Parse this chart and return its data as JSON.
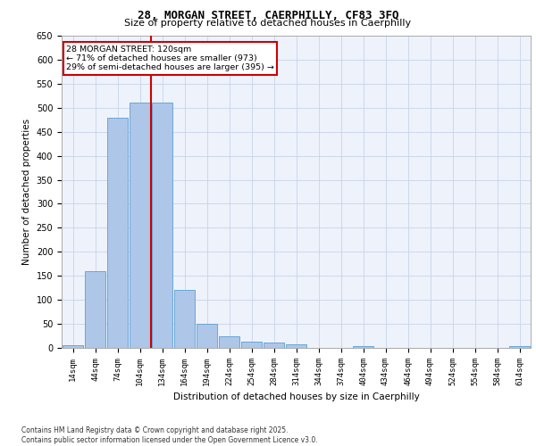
{
  "title_line1": "28, MORGAN STREET, CAERPHILLY, CF83 3FQ",
  "title_line2": "Size of property relative to detached houses in Caerphilly",
  "xlabel": "Distribution of detached houses by size in Caerphilly",
  "ylabel": "Number of detached properties",
  "bar_labels": [
    "14sqm",
    "44sqm",
    "74sqm",
    "104sqm",
    "134sqm",
    "164sqm",
    "194sqm",
    "224sqm",
    "254sqm",
    "284sqm",
    "314sqm",
    "344sqm",
    "374sqm",
    "404sqm",
    "434sqm",
    "464sqm",
    "494sqm",
    "524sqm",
    "554sqm",
    "584sqm",
    "614sqm"
  ],
  "bar_values": [
    5,
    160,
    480,
    510,
    510,
    120,
    50,
    25,
    13,
    12,
    8,
    0,
    0,
    3,
    0,
    0,
    0,
    0,
    0,
    0,
    3
  ],
  "bar_color": "#aec6e8",
  "bar_edge_color": "#5a9fd4",
  "vline_color": "#cc0000",
  "vline_pos": 3.5,
  "ylim": [
    0,
    650
  ],
  "yticks": [
    0,
    50,
    100,
    150,
    200,
    250,
    300,
    350,
    400,
    450,
    500,
    550,
    600,
    650
  ],
  "annotation_title": "28 MORGAN STREET: 120sqm",
  "annotation_line1": "← 71% of detached houses are smaller (973)",
  "annotation_line2": "29% of semi-detached houses are larger (395) →",
  "annotation_box_color": "#ffffff",
  "annotation_box_edge": "#cc0000",
  "footer_line1": "Contains HM Land Registry data © Crown copyright and database right 2025.",
  "footer_line2": "Contains public sector information licensed under the Open Government Licence v3.0.",
  "bg_color": "#eef2fb",
  "grid_color": "#c8d4e8"
}
